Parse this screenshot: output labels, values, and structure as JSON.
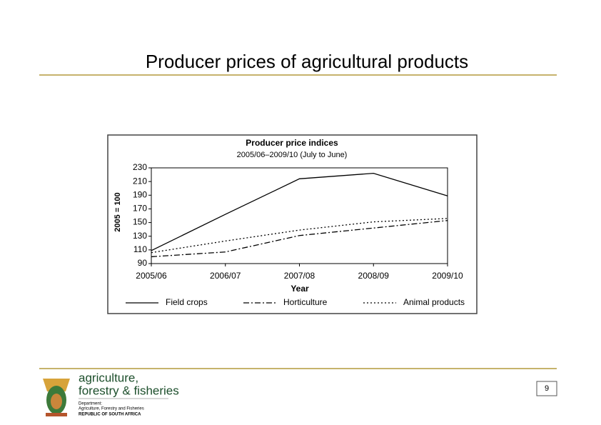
{
  "slide_title": "Producer prices of agricultural products",
  "chart_data": {
    "type": "line",
    "title": "Producer price indices",
    "subtitle": "2005/06–2009/10 (July to June)",
    "y_label": "2005 = 100",
    "x_label": "Year",
    "categories": [
      "2005/06",
      "2006/07",
      "2007/08",
      "2008/09",
      "2009/10"
    ],
    "series": [
      {
        "name": "Field crops",
        "color": "#000000",
        "dash": "solid",
        "values": [
          109,
          162,
          214,
          222,
          189
        ]
      },
      {
        "name": "Horticulture",
        "color": "#000000",
        "dash": "dashdot",
        "values": [
          100,
          107,
          131,
          142,
          153
        ]
      },
      {
        "name": "Animal products",
        "color": "#000000",
        "dash": "dotted",
        "values": [
          106,
          123,
          139,
          151,
          156
        ]
      }
    ],
    "ylim": [
      90,
      230
    ],
    "yticks": [
      90,
      110,
      130,
      150,
      170,
      190,
      210,
      230
    ],
    "grid": false,
    "legend": "bottom"
  },
  "footer": {
    "logo_lines": [
      "agriculture,",
      "forestry & fisheries"
    ],
    "department": "Department:",
    "department_name": "Agriculture, Forestry and Fisheries",
    "country": "REPUBLIC OF SOUTH AFRICA",
    "page_number": 9
  }
}
